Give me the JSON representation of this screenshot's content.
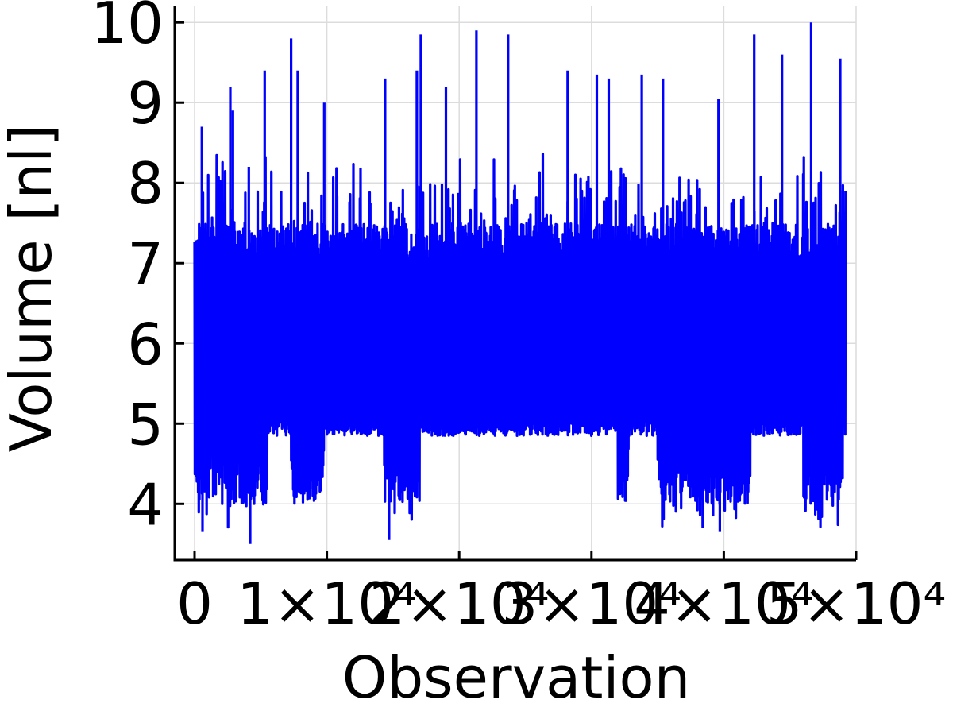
{
  "chart_data": {
    "type": "line",
    "title": "",
    "xlabel": "Observation",
    "ylabel": "Volume [nl]",
    "xlim": [
      -1500,
      50000
    ],
    "ylim": [
      3.3,
      10.2
    ],
    "x_ticks": [
      {
        "value": 0,
        "label": "0"
      },
      {
        "value": 10000,
        "label": "1×10⁴"
      },
      {
        "value": 20000,
        "label": "2×10⁴"
      },
      {
        "value": 30000,
        "label": "3×10⁴"
      },
      {
        "value": 40000,
        "label": "4×10⁴"
      },
      {
        "value": 50000,
        "label": "5×10⁴"
      }
    ],
    "y_ticks": [
      {
        "value": 4,
        "label": "4"
      },
      {
        "value": 5,
        "label": "5"
      },
      {
        "value": 6,
        "label": "6"
      },
      {
        "value": 7,
        "label": "7"
      },
      {
        "value": 8,
        "label": "8"
      },
      {
        "value": 9,
        "label": "9"
      },
      {
        "value": 10,
        "label": "10"
      }
    ],
    "grid": true,
    "legend": "none",
    "series": [
      {
        "color": "#0000ff",
        "x_range": [
          0,
          49200
        ],
        "n_points": 49200,
        "typical_range": [
          5.0,
          7.0
        ],
        "peak_max": 10.0,
        "overall_min": 3.5,
        "low_dip_segments": [
          [
            0,
            5500
          ],
          [
            7300,
            9800
          ],
          [
            14300,
            17000
          ],
          [
            32000,
            32800
          ],
          [
            35000,
            42000
          ],
          [
            46000,
            49000
          ]
        ],
        "spikes": [
          {
            "x": 550,
            "y": 8.7
          },
          {
            "x": 2700,
            "y": 9.2
          },
          {
            "x": 2900,
            "y": 8.9
          },
          {
            "x": 4100,
            "y": 8.2
          },
          {
            "x": 5300,
            "y": 9.4
          },
          {
            "x": 7300,
            "y": 9.8
          },
          {
            "x": 7800,
            "y": 9.4
          },
          {
            "x": 9800,
            "y": 9.0
          },
          {
            "x": 14400,
            "y": 9.3
          },
          {
            "x": 16800,
            "y": 9.4
          },
          {
            "x": 17100,
            "y": 9.85
          },
          {
            "x": 19000,
            "y": 9.2
          },
          {
            "x": 21300,
            "y": 9.9
          },
          {
            "x": 23700,
            "y": 9.85
          },
          {
            "x": 28200,
            "y": 9.4
          },
          {
            "x": 30400,
            "y": 9.35
          },
          {
            "x": 31300,
            "y": 9.3
          },
          {
            "x": 33800,
            "y": 9.35
          },
          {
            "x": 35400,
            "y": 9.3
          },
          {
            "x": 39600,
            "y": 9.05
          },
          {
            "x": 42300,
            "y": 9.85
          },
          {
            "x": 44400,
            "y": 9.6
          },
          {
            "x": 46600,
            "y": 10.0
          },
          {
            "x": 48800,
            "y": 9.55
          }
        ],
        "dips": [
          {
            "x": 4200,
            "y": 3.5
          },
          {
            "x": 14700,
            "y": 3.55
          },
          {
            "x": 39700,
            "y": 3.65
          },
          {
            "x": 600,
            "y": 3.65
          }
        ]
      }
    ]
  }
}
